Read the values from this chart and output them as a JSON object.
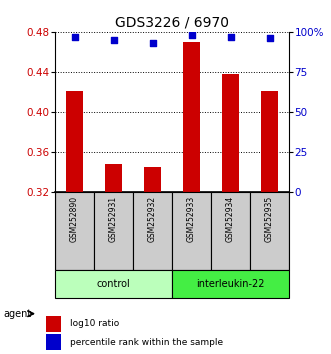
{
  "title": "GDS3226 / 6970",
  "samples": [
    "GSM252890",
    "GSM252931",
    "GSM252932",
    "GSM252933",
    "GSM252934",
    "GSM252935"
  ],
  "log10_ratio": [
    0.421,
    0.348,
    0.345,
    0.47,
    0.438,
    0.421
  ],
  "percentile_rank": [
    97,
    95,
    93,
    98,
    97,
    96
  ],
  "ylim_left": [
    0.32,
    0.48
  ],
  "ylim_right": [
    0,
    100
  ],
  "yticks_left": [
    0.32,
    0.36,
    0.4,
    0.44,
    0.48
  ],
  "yticks_right": [
    0,
    25,
    50,
    75,
    100
  ],
  "ytick_labels_right": [
    "0",
    "25",
    "50",
    "75",
    "100%"
  ],
  "bar_color": "#cc0000",
  "scatter_color": "#0000cc",
  "groups": [
    {
      "label": "control",
      "indices": [
        0,
        1,
        2
      ],
      "color": "#bbffbb"
    },
    {
      "label": "interleukin-22",
      "indices": [
        3,
        4,
        5
      ],
      "color": "#44ee44"
    }
  ],
  "group_row_color": "#cccccc",
  "agent_label": "agent",
  "legend_bar_label": "log10 ratio",
  "legend_scatter_label": "percentile rank within the sample",
  "title_fontsize": 10,
  "tick_fontsize": 7.5,
  "bar_width": 0.45,
  "background": "#ffffff"
}
